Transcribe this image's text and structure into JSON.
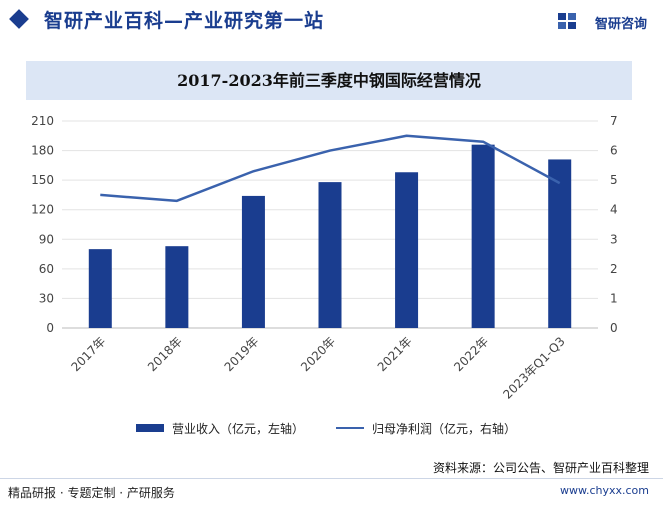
{
  "header": {
    "site_title": "智研产业百科—产业研究第一站",
    "brand_name": "智研咨询"
  },
  "colors": {
    "bar": "#1a3d8f",
    "line": "#3a62ad",
    "title_bg": "#dce6f5",
    "axis_text": "#444444",
    "grid": "#e3e3e3"
  },
  "chart_data": {
    "type": "bar+line",
    "title": "2017-2023年前三季度中钢国际经营情况",
    "categories": [
      "2017年",
      "2018年",
      "2019年",
      "2020年",
      "2021年",
      "2022年",
      "2023年Q1-Q3"
    ],
    "series": [
      {
        "name": "营业收入（亿元，左轴）",
        "type": "bar",
        "axis": "left",
        "values": [
          80,
          83,
          134,
          148,
          158,
          186,
          171
        ]
      },
      {
        "name": "归母净利润（亿元，右轴）",
        "type": "line",
        "axis": "right",
        "values": [
          4.5,
          4.3,
          5.3,
          6.0,
          6.5,
          6.3,
          4.9
        ]
      }
    ],
    "y_left": {
      "min": 0,
      "max": 210,
      "ticks": [
        "0",
        "30",
        "60",
        "90",
        "120",
        "150",
        "180",
        "210"
      ]
    },
    "y_right": {
      "min": 0,
      "max": 7,
      "ticks": [
        "0",
        "1",
        "2",
        "3",
        "4",
        "5",
        "6",
        "7"
      ]
    },
    "grid": true,
    "legend": "bottom"
  },
  "footer": {
    "source": "资料来源：公司公告、智研产业百科整理",
    "left_text": "精品研报 · 专题定制 · 产研服务",
    "right_text": "www.chyxx.com"
  }
}
